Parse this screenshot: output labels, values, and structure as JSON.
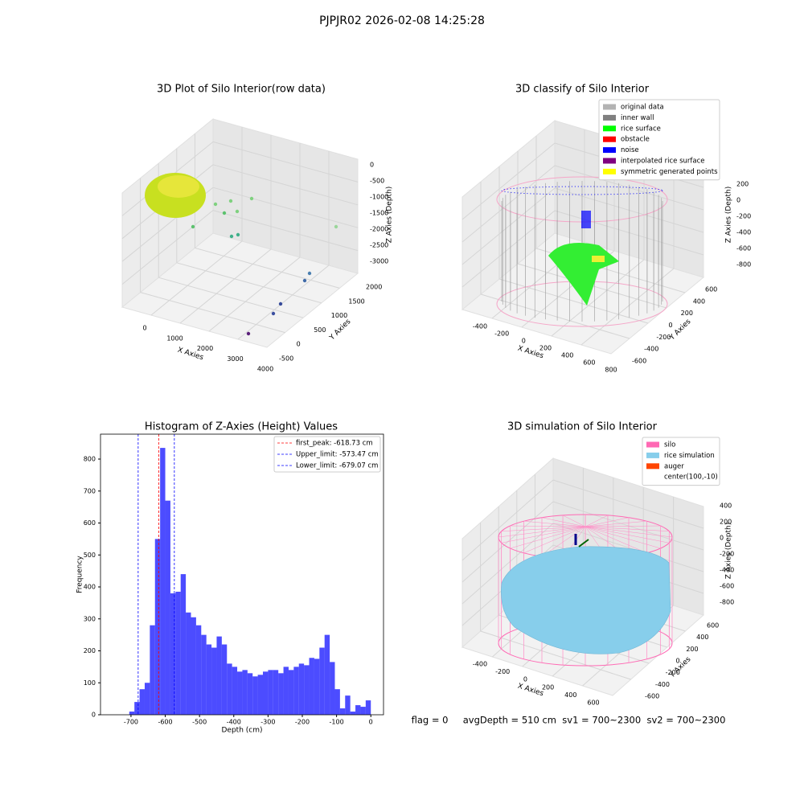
{
  "title": "PJPJR02 2026-02-08 14:25:28",
  "chart_data": [
    {
      "type": "scatter3d",
      "title": "3D Plot of Silo Interior(row data)",
      "xlabel": "X Axies",
      "ylabel": "Y Axies",
      "zlabel": "Z Axies (Depth)",
      "xticks": [
        0,
        1000,
        2000,
        3000,
        4000
      ],
      "yticks": [
        -500,
        0,
        500,
        1000,
        1500,
        2000
      ],
      "zticks": [
        0,
        -500,
        -1000,
        -1500,
        -2000,
        -2500,
        -3000
      ]
    },
    {
      "type": "scatter3d",
      "title": "3D classify of Silo Interior",
      "xlabel": "X Axies",
      "ylabel": "Y Axies",
      "zlabel": "Z Axies (Depth)",
      "xticks": [
        -400,
        -200,
        0,
        200,
        400,
        600,
        800
      ],
      "yticks": [
        -600,
        -400,
        -200,
        0,
        200,
        400,
        600
      ],
      "zticks": [
        200,
        0,
        -200,
        -400,
        -600,
        -800
      ],
      "legend": [
        {
          "name": "original data",
          "color": "#b3b3b3"
        },
        {
          "name": "inner wall",
          "color": "#808080"
        },
        {
          "name": "rice surface",
          "color": "#00ff00"
        },
        {
          "name": "obstacle",
          "color": "#ff0000"
        },
        {
          "name": "noise",
          "color": "#0000ff"
        },
        {
          "name": "interpolated rice surface",
          "color": "#800080"
        },
        {
          "name": "symmetric generated points",
          "color": "#ffff00"
        }
      ]
    },
    {
      "type": "histogram",
      "title": "Histogram of Z-Axies (Height) Values",
      "xlabel": "Depth (cm)",
      "ylabel": "Frequency",
      "color": "#0000ff",
      "bins": [
        -705,
        -690,
        -675,
        -660,
        -645,
        -630,
        -615,
        -600,
        -585,
        -570,
        -555,
        -540,
        -525,
        -510,
        -495,
        -480,
        -465,
        -450,
        -435,
        -420,
        -405,
        -390,
        -375,
        -360,
        -345,
        -330,
        -315,
        -300,
        -285,
        -270,
        -255,
        -240,
        -225,
        -210,
        -195,
        -180,
        -165,
        -150,
        -135,
        -120,
        -105,
        -90,
        -75,
        -60,
        -45,
        -30,
        -15,
        0
      ],
      "values": [
        10,
        40,
        80,
        100,
        280,
        550,
        835,
        670,
        380,
        385,
        440,
        320,
        305,
        280,
        250,
        220,
        210,
        245,
        220,
        160,
        150,
        135,
        140,
        130,
        120,
        125,
        135,
        140,
        140,
        130,
        150,
        140,
        150,
        160,
        155,
        178,
        175,
        210,
        250,
        165,
        80,
        20,
        60,
        10,
        30,
        25,
        45
      ],
      "xlim": [
        -789,
        37
      ],
      "xticks": [
        -700,
        -600,
        -500,
        -400,
        -300,
        -200,
        -100,
        0
      ],
      "ylim": [
        0,
        878
      ],
      "yticks": [
        0,
        100,
        200,
        300,
        400,
        500,
        600,
        700,
        800
      ],
      "vlines": [
        {
          "value": -618.73,
          "color": "#ff0000",
          "label": "first_peak: -618.73 cm"
        },
        {
          "value": -573.47,
          "color": "#0000ff",
          "label": "Upper_limit: -573.47 cm"
        },
        {
          "value": -679.07,
          "color": "#0000ff",
          "label": "Lower_limit: -679.07 cm"
        }
      ]
    },
    {
      "type": "surface3d",
      "title": "3D simulation of Silo Interior",
      "xlabel": "X Axies",
      "ylabel": "Y Axies",
      "zlabel": "Z Axies (Depth)",
      "xticks": [
        -400,
        -200,
        0,
        200,
        400,
        600
      ],
      "yticks": [
        -600,
        -400,
        -200,
        0,
        200,
        400,
        600
      ],
      "zticks": [
        400,
        200,
        0,
        -200,
        -400,
        -600,
        -800
      ],
      "legend": [
        {
          "name": "silo",
          "color": "#ff69b4"
        },
        {
          "name": "rice simulation",
          "color": "#87ceeb"
        },
        {
          "name": "auger",
          "color": "#ff4500"
        },
        {
          "name": "center(100,-10)"
        }
      ]
    }
  ],
  "status": "flag = 0     avgDepth = 510 cm  sv1 = 700~2300  sv2 = 700~2300"
}
